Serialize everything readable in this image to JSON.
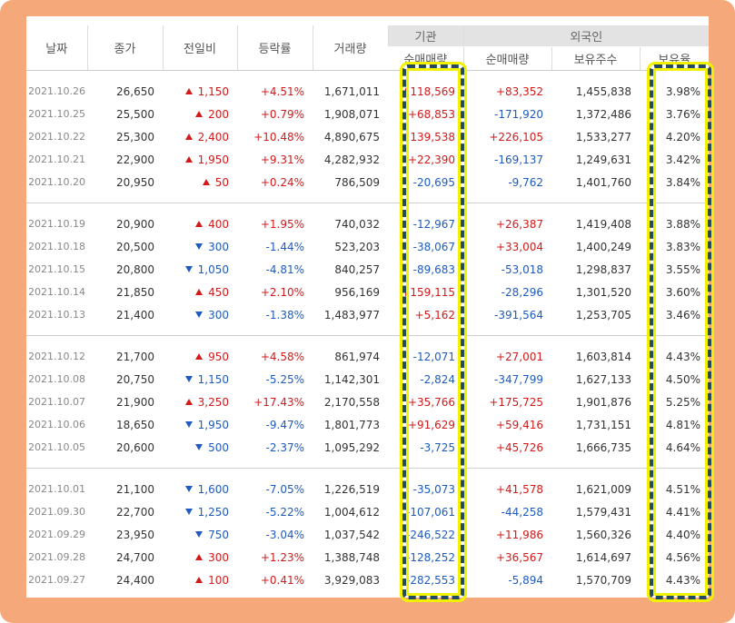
{
  "headers": {
    "date": "날짜",
    "close": "종가",
    "change": "전일비",
    "rate": "등락률",
    "volume": "거래량",
    "inst_group": "기관",
    "inst_net": "순매매량",
    "foreign_group": "외국인",
    "foreign_net": "순매매량",
    "foreign_hold": "보유주수",
    "foreign_ratio": "보유율"
  },
  "colors": {
    "frame": "#f5a97b",
    "up": "#d21a1a",
    "down": "#1f5bbf",
    "highlight_border": "#254a5e",
    "highlight_glow": "#f2f200"
  },
  "groups": [
    [
      {
        "date": "2021.10.26",
        "close": "26,650",
        "dir": "up",
        "change": "1,150",
        "rate": "+4.51%",
        "volume": "1,671,011",
        "inst": "+118,569",
        "foreign": "+83,352",
        "hold": "1,455,838",
        "ratio": "3.98%"
      },
      {
        "date": "2021.10.25",
        "close": "25,500",
        "dir": "up",
        "change": "200",
        "rate": "+0.79%",
        "volume": "1,908,071",
        "inst": "+68,853",
        "foreign": "-171,920",
        "hold": "1,372,486",
        "ratio": "3.76%"
      },
      {
        "date": "2021.10.22",
        "close": "25,300",
        "dir": "up",
        "change": "2,400",
        "rate": "+10.48%",
        "volume": "4,890,675",
        "inst": "+139,538",
        "foreign": "+226,105",
        "hold": "1,533,277",
        "ratio": "4.20%"
      },
      {
        "date": "2021.10.21",
        "close": "22,900",
        "dir": "up",
        "change": "1,950",
        "rate": "+9.31%",
        "volume": "4,282,932",
        "inst": "+22,390",
        "foreign": "-169,137",
        "hold": "1,249,631",
        "ratio": "3.42%"
      },
      {
        "date": "2021.10.20",
        "close": "20,950",
        "dir": "up",
        "change": "50",
        "rate": "+0.24%",
        "volume": "786,509",
        "inst": "-20,695",
        "foreign": "-9,762",
        "hold": "1,401,760",
        "ratio": "3.84%"
      }
    ],
    [
      {
        "date": "2021.10.19",
        "close": "20,900",
        "dir": "up",
        "change": "400",
        "rate": "+1.95%",
        "volume": "740,032",
        "inst": "-12,967",
        "foreign": "+26,387",
        "hold": "1,419,408",
        "ratio": "3.88%"
      },
      {
        "date": "2021.10.18",
        "close": "20,500",
        "dir": "down",
        "change": "300",
        "rate": "-1.44%",
        "volume": "523,203",
        "inst": "-38,067",
        "foreign": "+33,004",
        "hold": "1,400,249",
        "ratio": "3.83%"
      },
      {
        "date": "2021.10.15",
        "close": "20,800",
        "dir": "down",
        "change": "1,050",
        "rate": "-4.81%",
        "volume": "840,257",
        "inst": "-89,683",
        "foreign": "-53,018",
        "hold": "1,298,837",
        "ratio": "3.55%"
      },
      {
        "date": "2021.10.14",
        "close": "21,850",
        "dir": "up",
        "change": "450",
        "rate": "+2.10%",
        "volume": "956,169",
        "inst": "+159,115",
        "foreign": "-28,296",
        "hold": "1,301,520",
        "ratio": "3.60%"
      },
      {
        "date": "2021.10.13",
        "close": "21,400",
        "dir": "down",
        "change": "300",
        "rate": "-1.38%",
        "volume": "1,483,977",
        "inst": "+5,162",
        "foreign": "-391,564",
        "hold": "1,253,705",
        "ratio": "3.46%"
      }
    ],
    [
      {
        "date": "2021.10.12",
        "close": "21,700",
        "dir": "up",
        "change": "950",
        "rate": "+4.58%",
        "volume": "861,974",
        "inst": "-12,071",
        "foreign": "+27,001",
        "hold": "1,603,814",
        "ratio": "4.43%"
      },
      {
        "date": "2021.10.08",
        "close": "20,750",
        "dir": "down",
        "change": "1,150",
        "rate": "-5.25%",
        "volume": "1,142,301",
        "inst": "-2,824",
        "foreign": "-347,799",
        "hold": "1,627,133",
        "ratio": "4.50%"
      },
      {
        "date": "2021.10.07",
        "close": "21,900",
        "dir": "up",
        "change": "3,250",
        "rate": "+17.43%",
        "volume": "2,170,558",
        "inst": "+35,766",
        "foreign": "+175,725",
        "hold": "1,901,876",
        "ratio": "5.25%"
      },
      {
        "date": "2021.10.06",
        "close": "18,650",
        "dir": "down",
        "change": "1,950",
        "rate": "-9.47%",
        "volume": "1,801,773",
        "inst": "+91,629",
        "foreign": "+59,416",
        "hold": "1,731,151",
        "ratio": "4.81%"
      },
      {
        "date": "2021.10.05",
        "close": "20,600",
        "dir": "down",
        "change": "500",
        "rate": "-2.37%",
        "volume": "1,095,292",
        "inst": "-3,725",
        "foreign": "+45,726",
        "hold": "1,666,735",
        "ratio": "4.64%"
      }
    ],
    [
      {
        "date": "2021.10.01",
        "close": "21,100",
        "dir": "down",
        "change": "1,600",
        "rate": "-7.05%",
        "volume": "1,226,519",
        "inst": "-35,073",
        "foreign": "+41,578",
        "hold": "1,621,009",
        "ratio": "4.51%"
      },
      {
        "date": "2021.09.30",
        "close": "22,700",
        "dir": "down",
        "change": "1,250",
        "rate": "-5.22%",
        "volume": "1,004,612",
        "inst": "-107,061",
        "foreign": "-44,258",
        "hold": "1,579,431",
        "ratio": "4.41%"
      },
      {
        "date": "2021.09.29",
        "close": "23,950",
        "dir": "down",
        "change": "750",
        "rate": "-3.04%",
        "volume": "1,037,542",
        "inst": "-246,522",
        "foreign": "+11,986",
        "hold": "1,560,326",
        "ratio": "4.40%"
      },
      {
        "date": "2021.09.28",
        "close": "24,700",
        "dir": "up",
        "change": "300",
        "rate": "+1.23%",
        "volume": "1,388,748",
        "inst": "-128,252",
        "foreign": "+36,567",
        "hold": "1,614,697",
        "ratio": "4.56%"
      },
      {
        "date": "2021.09.27",
        "close": "24,400",
        "dir": "up",
        "change": "100",
        "rate": "+0.41%",
        "volume": "3,929,083",
        "inst": "-282,553",
        "foreign": "-5,894",
        "hold": "1,570,709",
        "ratio": "4.43%"
      }
    ]
  ]
}
